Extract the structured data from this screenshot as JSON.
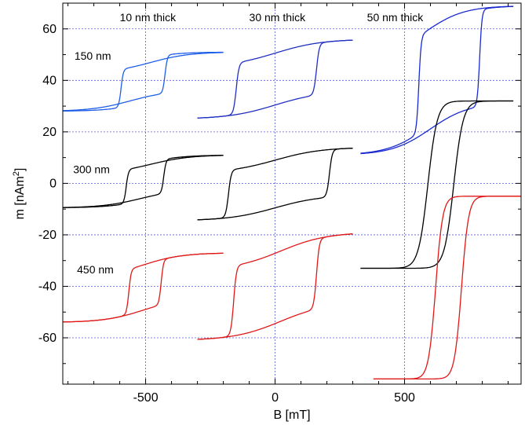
{
  "chart_data": {
    "type": "line",
    "title": "",
    "xlabel": "B [mT]",
    "ylabel_main": "m [nAm",
    "ylabel_sup": "2",
    "ylabel_end": "]",
    "xlim": [
      -820,
      950
    ],
    "ylim": [
      -78,
      70
    ],
    "x_ticks": [
      -500,
      0,
      500
    ],
    "x_tick_labels": [
      "-500",
      "0",
      "500"
    ],
    "y_ticks": [
      -60,
      -40,
      -20,
      0,
      20,
      40,
      60
    ],
    "y_tick_labels": [
      "-60",
      "-40",
      "-20",
      "0",
      "20",
      "40",
      "60"
    ],
    "grid": true,
    "annotations": [
      {
        "text": "10 nm thick",
        "x": -600,
        "y": 63
      },
      {
        "text": "30 nm thick",
        "x": -100,
        "y": 63
      },
      {
        "text": "50 nm thick",
        "x": 355,
        "y": 63
      },
      {
        "text": "150 nm",
        "x": -775,
        "y": 48
      },
      {
        "text": "300 nm",
        "x": -780,
        "y": 4
      },
      {
        "text": "450 nm",
        "x": -765,
        "y": -35
      }
    ],
    "loops": [
      {
        "width": "150 nm",
        "thickness": "10 nm",
        "color": "#1e5ee8",
        "xmin": -820,
        "xmax": -200,
        "ylow": 28,
        "yhigh": 51,
        "c1": -480,
        "c2": -560,
        "h1": -595,
        "h2": -425,
        "s": 15
      },
      {
        "width": "150 nm",
        "thickness": "30 nm",
        "color": "#1f2fc0",
        "xmin": -300,
        "xmax": 300,
        "ylow": 25,
        "yhigh": 56,
        "c1": 0,
        "c2": 0,
        "h1": -150,
        "h2": 160,
        "s": 18
      },
      {
        "width": "150 nm",
        "thickness": "50 nm",
        "color": "#1a2ad0",
        "xmin": 330,
        "xmax": 920,
        "ylow": 11,
        "yhigh": 69,
        "c1": 580,
        "c2": 600,
        "h1": 555,
        "h2": 790,
        "s": 15
      },
      {
        "width": "300 nm",
        "thickness": "10 nm",
        "color": "#000000",
        "xmin": -820,
        "xmax": -200,
        "ylow": -9.5,
        "yhigh": 11,
        "c1": -480,
        "c2": -520,
        "h1": -575,
        "h2": -430,
        "s": 15
      },
      {
        "width": "300 nm",
        "thickness": "30 nm",
        "color": "#000000",
        "xmin": -300,
        "xmax": 300,
        "ylow": -14.5,
        "yhigh": 14,
        "c1": 0,
        "c2": 0,
        "h1": -180,
        "h2": 210,
        "s": 18
      },
      {
        "width": "300 nm",
        "thickness": "50 nm",
        "color": "#000000",
        "xmin": 330,
        "xmax": 920,
        "ylow": -33,
        "yhigh": 32,
        "c1": 590,
        "c2": 690,
        "h1": 0,
        "h2": 0,
        "s": 40
      },
      {
        "width": "450 nm",
        "thickness": "10 nm",
        "color": "#e01818",
        "xmin": -820,
        "xmax": -200,
        "ylow": -54,
        "yhigh": -27,
        "c1": -510,
        "c2": -510,
        "h1": -565,
        "h2": -440,
        "s": 15
      },
      {
        "width": "450 nm",
        "thickness": "30 nm",
        "color": "#e01818",
        "xmin": -300,
        "xmax": 300,
        "ylow": -61,
        "yhigh": -19,
        "c1": 20,
        "c2": 20,
        "h1": -160,
        "h2": 160,
        "s": 18
      },
      {
        "width": "450 nm",
        "thickness": "50 nm",
        "color": "#e01818",
        "xmin": 380,
        "xmax": 950,
        "ylow": -76,
        "yhigh": -5,
        "c1": 620,
        "c2": 720,
        "h1": 0,
        "h2": 0,
        "s": 30
      }
    ]
  }
}
